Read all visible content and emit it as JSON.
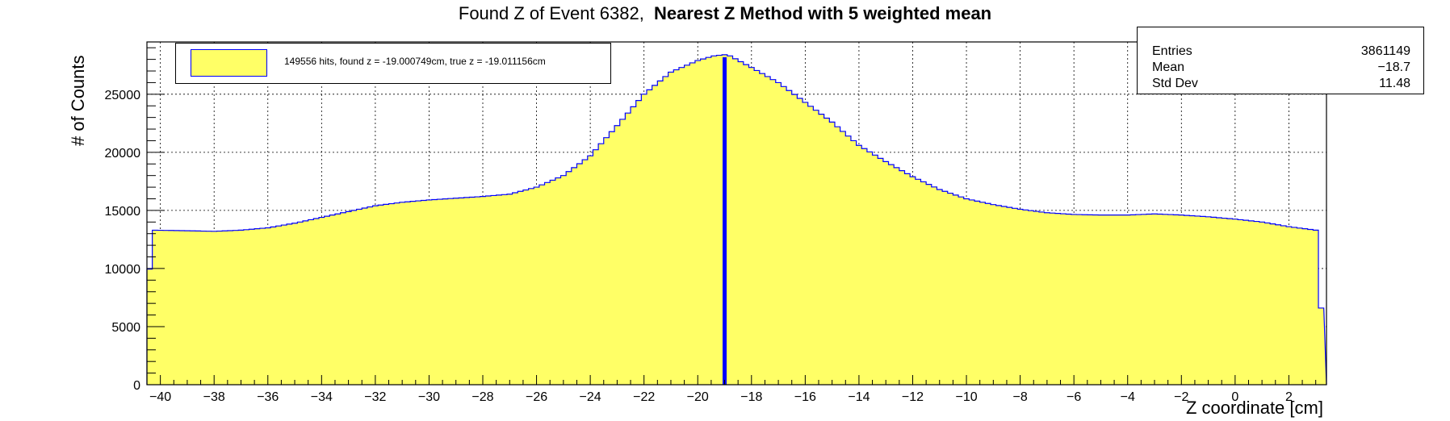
{
  "title": {
    "prefix": "Found Z of Event 6382,",
    "main": "Nearest Z Method with 5 weighted mean"
  },
  "colors": {
    "fill": "#ffff66",
    "line": "#0000ff",
    "frame": "#000000",
    "grid": "#000000"
  },
  "stats": {
    "rows": [
      {
        "label": "Entries",
        "value": "3861149"
      },
      {
        "label": "Mean",
        "value": "−18.7"
      },
      {
        "label": "Std Dev",
        "value": "11.48"
      }
    ]
  },
  "legend": {
    "text": "149556 hits, found z = -19.000749cm, true z = -19.011156cm"
  },
  "chart_data": {
    "type": "histogram",
    "xlabel": "Z coordinate [cm]",
    "ylabel": "# of Counts",
    "xlim": [
      -40.5,
      3.4
    ],
    "ylim": [
      0,
      29500
    ],
    "xticks": [
      -40,
      -38,
      -36,
      -34,
      -32,
      -30,
      -28,
      -26,
      -24,
      -22,
      -20,
      -18,
      -16,
      -14,
      -12,
      -10,
      -8,
      -6,
      -4,
      -2,
      0,
      2
    ],
    "yticks": [
      0,
      5000,
      10000,
      15000,
      20000,
      25000
    ],
    "grid": true,
    "legend_position": "top-left",
    "bin_width": 0.2,
    "profile": [
      [
        -40.5,
        6600
      ],
      [
        -40.3,
        13300
      ],
      [
        -39,
        13250
      ],
      [
        -38,
        13200
      ],
      [
        -37,
        13300
      ],
      [
        -36,
        13500
      ],
      [
        -35,
        13900
      ],
      [
        -34,
        14400
      ],
      [
        -33,
        14900
      ],
      [
        -32,
        15400
      ],
      [
        -31,
        15700
      ],
      [
        -30,
        15900
      ],
      [
        -29,
        16050
      ],
      [
        -28,
        16200
      ],
      [
        -27,
        16400
      ],
      [
        -26,
        17000
      ],
      [
        -25,
        18000
      ],
      [
        -24,
        19700
      ],
      [
        -23,
        22300
      ],
      [
        -22,
        25000
      ],
      [
        -21,
        26900
      ],
      [
        -20,
        27900
      ],
      [
        -19.4,
        28300
      ],
      [
        -19,
        28400
      ],
      [
        -18.8,
        28300
      ],
      [
        -18,
        27300
      ],
      [
        -17,
        26000
      ],
      [
        -16,
        24300
      ],
      [
        -15,
        22600
      ],
      [
        -14,
        20600
      ],
      [
        -13,
        19200
      ],
      [
        -12,
        17900
      ],
      [
        -11,
        16800
      ],
      [
        -10,
        16000
      ],
      [
        -9,
        15500
      ],
      [
        -8,
        15100
      ],
      [
        -7,
        14800
      ],
      [
        -6,
        14650
      ],
      [
        -5,
        14600
      ],
      [
        -4,
        14600
      ],
      [
        -3,
        14700
      ],
      [
        -2,
        14600
      ],
      [
        -1,
        14450
      ],
      [
        0,
        14250
      ],
      [
        1,
        14000
      ],
      [
        2,
        13600
      ],
      [
        3.0,
        13300
      ],
      [
        3.2,
        6600
      ],
      [
        3.4,
        6600
      ]
    ],
    "marker": {
      "x": -19.0,
      "label": "found z"
    }
  }
}
